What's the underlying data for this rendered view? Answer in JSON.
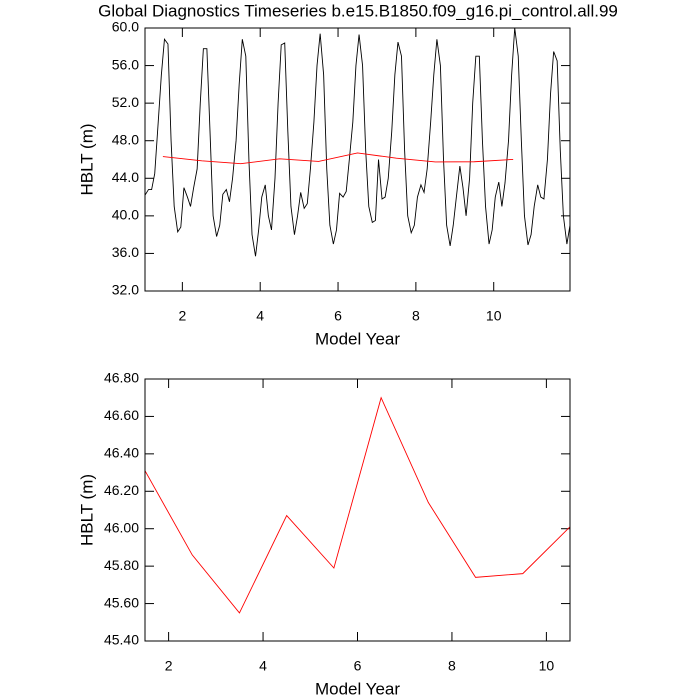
{
  "chart_data": [
    {
      "type": "line",
      "title": "Global Diagnostics Timeseries b.e15.B1850.f09_g16.pi_control.all.99",
      "x_label": "Model Year",
      "y_label": "HBLT (m)",
      "xlim": [
        1.04,
        11.96
      ],
      "ylim": [
        32,
        60
      ],
      "xticks": [
        2,
        4,
        6,
        8,
        10
      ],
      "yticks": [
        {
          "value": 32,
          "label": "32.0"
        },
        {
          "value": 36,
          "label": "36.0"
        },
        {
          "value": 40,
          "label": "40.0"
        },
        {
          "value": 44,
          "label": "44.0"
        },
        {
          "value": 48,
          "label": "48.0"
        },
        {
          "value": 52,
          "label": "52.0"
        },
        {
          "value": 56,
          "label": "56.0"
        },
        {
          "value": 60,
          "label": "60.0"
        }
      ],
      "series": [
        {
          "color": "#000000",
          "x": [
            1.04,
            1.13,
            1.21,
            1.29,
            1.38,
            1.46,
            1.54,
            1.63,
            1.71,
            1.79,
            1.88,
            1.96,
            2.04,
            2.13,
            2.21,
            2.29,
            2.38,
            2.46,
            2.54,
            2.63,
            2.71,
            2.79,
            2.88,
            2.96,
            3.04,
            3.13,
            3.21,
            3.29,
            3.38,
            3.46,
            3.54,
            3.63,
            3.71,
            3.79,
            3.88,
            3.96,
            4.04,
            4.13,
            4.21,
            4.29,
            4.38,
            4.46,
            4.54,
            4.63,
            4.71,
            4.79,
            4.88,
            4.96,
            5.04,
            5.13,
            5.21,
            5.29,
            5.38,
            5.46,
            5.54,
            5.63,
            5.71,
            5.79,
            5.88,
            5.96,
            6.04,
            6.13,
            6.21,
            6.29,
            6.38,
            6.46,
            6.54,
            6.63,
            6.71,
            6.79,
            6.88,
            6.96,
            7.04,
            7.13,
            7.21,
            7.29,
            7.38,
            7.46,
            7.54,
            7.63,
            7.71,
            7.79,
            7.88,
            7.96,
            8.04,
            8.13,
            8.21,
            8.29,
            8.38,
            8.46,
            8.54,
            8.63,
            8.71,
            8.79,
            8.88,
            8.96,
            9.04,
            9.13,
            9.21,
            9.29,
            9.38,
            9.46,
            9.54,
            9.63,
            9.71,
            9.79,
            9.88,
            9.96,
            10.04,
            10.13,
            10.21,
            10.29,
            10.38,
            10.46,
            10.54,
            10.63,
            10.71,
            10.79,
            10.88,
            10.96,
            11.04,
            11.13,
            11.21,
            11.29,
            11.38,
            11.46,
            11.54,
            11.63,
            11.71,
            11.79,
            11.88,
            11.96
          ],
          "values": [
            42.2,
            42.8,
            42.8,
            44.5,
            50,
            55,
            58.8,
            58.3,
            48,
            41,
            38.3,
            38.8,
            43,
            42,
            41,
            43,
            45,
            52,
            57.8,
            57.8,
            49,
            40,
            37.8,
            39,
            42.3,
            42.8,
            41.5,
            44,
            48,
            54,
            58.8,
            57,
            46,
            38,
            35.7,
            38.5,
            42,
            43.3,
            40,
            38.5,
            44,
            52,
            58.2,
            58.4,
            49,
            41,
            38,
            40,
            42.5,
            40.8,
            41.3,
            45,
            50,
            56,
            59.4,
            55,
            45,
            39,
            37,
            38.5,
            42.4,
            42,
            42.6,
            46,
            50,
            56,
            59.3,
            56,
            47,
            41,
            39.3,
            39.5,
            46,
            41.8,
            42,
            44,
            49,
            55,
            58.5,
            57,
            47,
            40,
            38.2,
            39,
            42,
            43.3,
            42.5,
            45,
            50,
            55,
            58.8,
            56,
            46,
            39,
            36.8,
            39,
            42,
            45.3,
            43,
            40,
            44,
            52,
            57,
            57,
            48,
            41,
            37,
            38.5,
            42,
            43.6,
            41,
            43.5,
            48,
            55,
            60,
            57,
            48,
            40,
            36.9,
            38,
            41,
            43.3,
            42,
            41.8,
            46,
            53,
            57.5,
            56.5,
            47,
            40,
            37,
            39
          ]
        },
        {
          "color": "#ff0000",
          "x": [
            1.5,
            2.5,
            3.5,
            4.5,
            5.5,
            6.5,
            7.5,
            8.5,
            9.5,
            10.5
          ],
          "values": [
            46.31,
            45.86,
            45.55,
            46.07,
            45.79,
            46.7,
            46.14,
            45.74,
            45.76,
            46.01
          ]
        }
      ]
    },
    {
      "type": "line",
      "x_label": "Model Year",
      "y_label": "HBLT (m)",
      "xlim": [
        1.5,
        10.5
      ],
      "ylim": [
        45.4,
        46.8
      ],
      "xticks": [
        2,
        4,
        6,
        8,
        10
      ],
      "yticks": [
        {
          "value": 45.4,
          "label": "45.40"
        },
        {
          "value": 45.6,
          "label": "45.60"
        },
        {
          "value": 45.8,
          "label": "45.80"
        },
        {
          "value": 46,
          "label": "46.00"
        },
        {
          "value": 46.2,
          "label": "46.20"
        },
        {
          "value": 46.4,
          "label": "46.40"
        },
        {
          "value": 46.6,
          "label": "46.60"
        },
        {
          "value": 46.8,
          "label": "46.80"
        }
      ],
      "series": [
        {
          "color": "#ff0000",
          "x": [
            1.5,
            2.5,
            3.5,
            4.5,
            5.5,
            6.5,
            7.5,
            8.5,
            9.5,
            10.5
          ],
          "values": [
            46.31,
            45.86,
            45.55,
            46.07,
            45.79,
            46.7,
            46.14,
            45.74,
            45.76,
            46.01
          ]
        }
      ]
    }
  ]
}
